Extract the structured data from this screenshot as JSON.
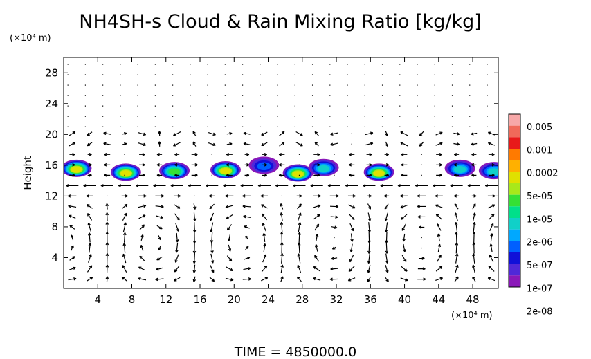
{
  "chart_data": {
    "type": "contour-vector",
    "title": "NH4SH-s Cloud & Rain Mixing Ratio [kg/kg]",
    "ylabel": "Height",
    "x_unit": "(×10⁴ m)",
    "y_unit": "(×10⁴ m)",
    "xlim": [
      0,
      51
    ],
    "ylim": [
      0,
      30
    ],
    "x_ticks": [
      4,
      8,
      12,
      16,
      20,
      24,
      28,
      32,
      36,
      40,
      44,
      48
    ],
    "y_ticks": [
      4,
      8,
      12,
      16,
      20,
      24,
      28
    ],
    "footer": "TIME = 4850000.0",
    "colorbar": {
      "levels": [
        "0.005",
        "0.001",
        "0.0002",
        "5e-05",
        "1e-05",
        "2e-06",
        "5e-07",
        "1e-07",
        "2e-08"
      ],
      "colors": [
        "#f7a8a8",
        "#f06a5a",
        "#e81a1a",
        "#ff7a00",
        "#ffb000",
        "#e0e000",
        "#a8e81a",
        "#35e035",
        "#00e08a",
        "#10d0c8",
        "#00a8ff",
        "#0060ff",
        "#1010d8",
        "#5028d8",
        "#8a18b8"
      ]
    },
    "clouds": [
      {
        "x": 1.5,
        "y": 15.6,
        "peak": "5e-05"
      },
      {
        "x": 7.3,
        "y": 15.1,
        "peak": "5e-05"
      },
      {
        "x": 13.0,
        "y": 15.3,
        "peak": "1e-05"
      },
      {
        "x": 19.0,
        "y": 15.4,
        "peak": "5e-05"
      },
      {
        "x": 23.5,
        "y": 16.0,
        "peak": "5e-07"
      },
      {
        "x": 27.5,
        "y": 15.0,
        "peak": "5e-05"
      },
      {
        "x": 30.5,
        "y": 15.7,
        "peak": "2e-06"
      },
      {
        "x": 37.0,
        "y": 15.1,
        "peak": "5e-05"
      },
      {
        "x": 46.5,
        "y": 15.6,
        "peak": "2e-06"
      },
      {
        "x": 50.5,
        "y": 15.3,
        "peak": "2e-06"
      }
    ]
  }
}
